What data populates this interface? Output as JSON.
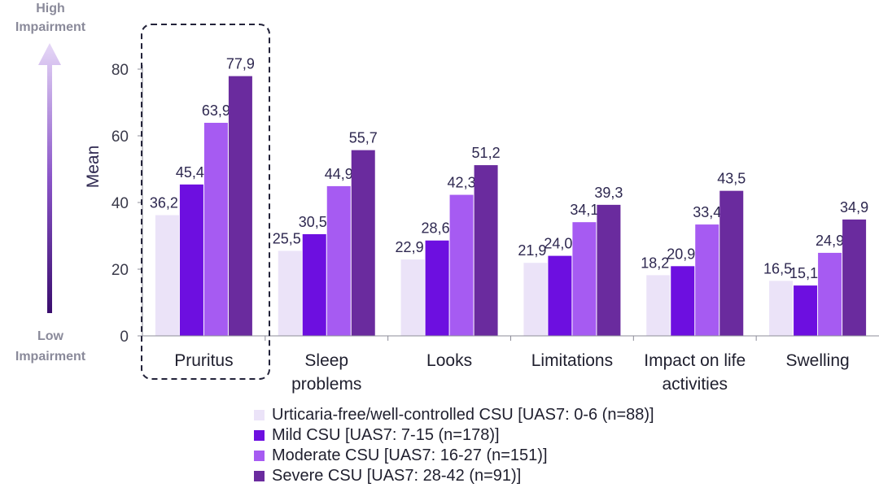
{
  "chart_data": {
    "type": "bar",
    "ylabel": "Mean",
    "ylim": [
      0,
      80
    ],
    "yticks": [
      "0",
      "20",
      "40",
      "60",
      "80"
    ],
    "categories": [
      [
        "Pruritus"
      ],
      [
        "Sleep",
        "problems"
      ],
      [
        "Looks"
      ],
      [
        "Limitations"
      ],
      [
        "Impact on life",
        "activities"
      ],
      [
        "Swelling"
      ]
    ],
    "series": [
      {
        "name": "Urticaria-free/well-controlled CSU [UAS7: 0-6 (n=88)]",
        "color": "#ebe3f8",
        "values": [
          36.2,
          25.5,
          22.9,
          21.9,
          18.2,
          16.5
        ],
        "labels": [
          "36,2",
          "25,5",
          "22,9",
          "21,9",
          "18,2",
          "16,5"
        ]
      },
      {
        "name": "Mild CSU [UAS7: 7-15 (n=178)]",
        "color": "#6d0fe0",
        "values": [
          45.4,
          30.5,
          28.6,
          24.0,
          20.9,
          15.1
        ],
        "labels": [
          "45,4",
          "30,5",
          "28,6",
          "24,0",
          "20,9",
          "15,1"
        ]
      },
      {
        "name": "Moderate CSU [UAS7: 16-27 (n=151)]",
        "color": "#a65bf2",
        "values": [
          63.9,
          44.9,
          42.3,
          34.1,
          33.4,
          24.9
        ],
        "labels": [
          "63,9",
          "44,9",
          "42,3",
          "34,1",
          "33,4",
          "24,9"
        ]
      },
      {
        "name": "Severe CSU [UAS7: 28-42 (n=91)]",
        "color": "#6a2b9e",
        "values": [
          77.9,
          55.7,
          51.2,
          39.3,
          43.5,
          34.9
        ],
        "labels": [
          "77,9",
          "55,7",
          "51,2",
          "39,3",
          "43,5",
          "34,9"
        ]
      }
    ],
    "highlighted_category": "Pruritus",
    "impairment_scale": {
      "high": [
        "High",
        "Impairment"
      ],
      "low": [
        "Low",
        "Impairment"
      ]
    },
    "grid": false,
    "legend_position": "bottom"
  }
}
